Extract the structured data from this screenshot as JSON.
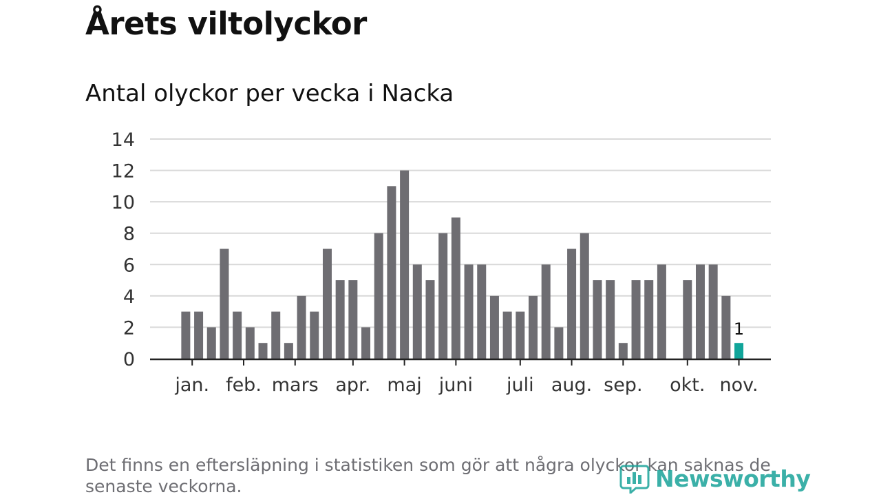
{
  "title": "Årets viltolyckor",
  "subtitle": "Antal olyckor per vecka i Nacka",
  "note": "Det finns en eftersläpning i statistiken som gör att några olyckor kan saknas de senaste veckorna.",
  "brand": {
    "name": "Newsworthy",
    "icon": "newsworthy-logo-icon",
    "color": "#1aa39a"
  },
  "chart_data": {
    "type": "bar",
    "title": "Antal olyckor per vecka i Nacka",
    "ylim": [
      0,
      14
    ],
    "yticks": [
      0,
      2,
      4,
      6,
      8,
      10,
      12,
      14
    ],
    "grid": true,
    "x_unit": "week",
    "x": [
      1,
      2,
      3,
      4,
      5,
      6,
      7,
      8,
      9,
      10,
      11,
      12,
      13,
      14,
      15,
      16,
      17,
      18,
      19,
      20,
      21,
      22,
      23,
      24,
      25,
      26,
      27,
      28,
      29,
      30,
      31,
      32,
      33,
      34,
      35,
      36,
      37,
      38,
      39,
      40,
      41,
      42,
      43,
      44,
      45,
      46,
      47
    ],
    "values": [
      0,
      0,
      3,
      3,
      2,
      7,
      3,
      2,
      1,
      3,
      1,
      4,
      3,
      7,
      5,
      5,
      2,
      8,
      11,
      12,
      6,
      5,
      8,
      9,
      6,
      6,
      4,
      3,
      3,
      4,
      6,
      2,
      7,
      8,
      5,
      5,
      1,
      5,
      5,
      6,
      0,
      5,
      6,
      6,
      4,
      1,
      0
    ],
    "month_ticks": [
      {
        "label": "jan.",
        "week": 3.5
      },
      {
        "label": "feb.",
        "week": 7.5
      },
      {
        "label": "mars",
        "week": 11.5
      },
      {
        "label": "apr.",
        "week": 16
      },
      {
        "label": "maj",
        "week": 20
      },
      {
        "label": "juni",
        "week": 24
      },
      {
        "label": "juli",
        "week": 29
      },
      {
        "label": "aug.",
        "week": 33
      },
      {
        "label": "sep.",
        "week": 37
      },
      {
        "label": "okt.",
        "week": 42
      },
      {
        "label": "nov.",
        "week": 46
      }
    ],
    "highlight": {
      "week": 46,
      "value": 1,
      "label": "1",
      "color": "#11a59a"
    },
    "bar_color": "#6e6d72",
    "axis_color": "#222222",
    "grid_color": "#d9d9d9"
  }
}
